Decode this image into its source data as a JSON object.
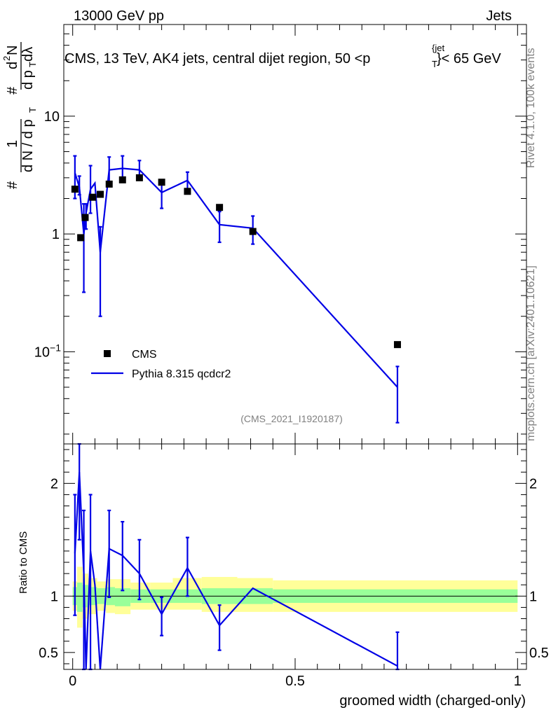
{
  "header": {
    "left": "13000 GeV pp",
    "right": "Jets"
  },
  "side": {
    "rivet": "Rivet 4.1.0,  100k events",
    "mcplots": "mcplots.cern.ch [arXiv:2401.10621]"
  },
  "colors": {
    "data": "#000000",
    "mc": "#0000e6",
    "band_inner": "#99ff99",
    "band_outer": "#ffff99"
  },
  "chart_data": [
    {
      "type": "scatter",
      "title": "CMS, 13 TeV, AK4 jets, central dijet region, 50 <p_T^{jet}< 65 GeV",
      "title_parts": {
        "main": "CMS, 13 TeV, AK4 jets, central dijet region, 50 <p",
        "sup": "{jet",
        "sub": "T",
        "tail": "}< 65 GeV"
      },
      "analysis_tag": "(CMS_2021_I1920187)",
      "ylabel_parts": {
        "hash": "#",
        "one": "1",
        "den": "d N / d p",
        "den_sub": "T",
        "hash2": "#",
        "num2": "d",
        "num2_sup": "2",
        "num2_rest": "N",
        "den2": "d p",
        "den2_sub": "T",
        "den2_rest": " dλ"
      },
      "yscale": "log",
      "ylim": [
        0.0165,
        60
      ],
      "xlim": [
        -0.02,
        1.02
      ],
      "yticks": [
        {
          "value": 0.1,
          "base": "10",
          "exp": "−1"
        },
        {
          "value": 1,
          "label": "1"
        },
        {
          "value": 10,
          "label": "10"
        }
      ],
      "legend": {
        "position": "lower-left",
        "entries": [
          "CMS",
          "Pythia 8.315 qcdcr2"
        ]
      },
      "series": [
        {
          "name": "CMS",
          "marker": "square",
          "x": [
            0.005,
            0.018,
            0.028,
            0.045,
            0.062,
            0.082,
            0.112,
            0.15,
            0.2,
            0.258,
            0.33,
            0.405,
            0.73
          ],
          "y": [
            2.4,
            0.93,
            1.38,
            2.05,
            2.17,
            2.65,
            2.88,
            3.0,
            2.75,
            2.3,
            1.68,
            1.05,
            0.115
          ]
        },
        {
          "name": "Pythia 8.315 qcdcr2",
          "line": true,
          "x": [
            0.005,
            0.015,
            0.025,
            0.03,
            0.04,
            0.05,
            0.062,
            0.082,
            0.112,
            0.15,
            0.2,
            0.258,
            0.33,
            0.405,
            0.73
          ],
          "y": [
            3.3,
            2.5,
            1.0,
            1.5,
            2.4,
            2.7,
            0.7,
            3.5,
            3.6,
            3.5,
            2.25,
            2.85,
            1.2,
            1.12,
            0.05
          ],
          "err_lo": [
            2.0,
            2.15,
            0.32,
            1.1,
            1.5,
            null,
            0.2,
            2.6,
            3.0,
            2.9,
            1.65,
            2.25,
            0.85,
            0.82,
            0.025
          ],
          "err_hi": [
            4.6,
            3.1,
            1.8,
            1.8,
            3.8,
            null,
            1.15,
            4.5,
            4.6,
            4.2,
            2.8,
            3.35,
            1.55,
            1.42,
            0.075
          ]
        }
      ]
    },
    {
      "type": "line",
      "ylabel": "Ratio to CMS",
      "xlabel": "groomed width (charged-only)",
      "ylim": [
        0.35,
        2.35
      ],
      "xlim": [
        -0.02,
        1.02
      ],
      "xticks": [
        {
          "value": 0,
          "label": "0"
        },
        {
          "value": 0.5,
          "label": "0.5"
        },
        {
          "value": 1,
          "label": "1"
        }
      ],
      "yticks": [
        {
          "value": 0.5,
          "label": "0.5"
        },
        {
          "value": 1,
          "label": "1"
        },
        {
          "value": 2,
          "label": "2"
        }
      ],
      "reference": 1,
      "bands": [
        {
          "x0": 0.0,
          "x1": 0.01,
          "inner": [
            0.92,
            1.08
          ],
          "outer": [
            0.87,
            1.13
          ]
        },
        {
          "x0": 0.01,
          "x1": 0.022,
          "inner": [
            0.86,
            1.12
          ],
          "outer": [
            0.72,
            1.26
          ]
        },
        {
          "x0": 0.022,
          "x1": 0.035,
          "inner": [
            0.9,
            1.1
          ],
          "outer": [
            0.8,
            1.2
          ]
        },
        {
          "x0": 0.035,
          "x1": 0.055,
          "inner": [
            0.92,
            1.08
          ],
          "outer": [
            0.84,
            1.16
          ]
        },
        {
          "x0": 0.055,
          "x1": 0.075,
          "inner": [
            0.93,
            1.07
          ],
          "outer": [
            0.87,
            1.13
          ]
        },
        {
          "x0": 0.075,
          "x1": 0.095,
          "inner": [
            0.92,
            1.08
          ],
          "outer": [
            0.85,
            1.15
          ]
        },
        {
          "x0": 0.095,
          "x1": 0.13,
          "inner": [
            0.91,
            1.07
          ],
          "outer": [
            0.84,
            1.15
          ]
        },
        {
          "x0": 0.13,
          "x1": 0.175,
          "inner": [
            0.94,
            1.06
          ],
          "outer": [
            0.88,
            1.12
          ]
        },
        {
          "x0": 0.175,
          "x1": 0.225,
          "inner": [
            0.94,
            1.06
          ],
          "outer": [
            0.88,
            1.12
          ]
        },
        {
          "x0": 0.225,
          "x1": 0.29,
          "inner": [
            0.94,
            1.06
          ],
          "outer": [
            0.88,
            1.16
          ]
        },
        {
          "x0": 0.29,
          "x1": 0.37,
          "inner": [
            0.93,
            1.07
          ],
          "outer": [
            0.86,
            1.17
          ]
        },
        {
          "x0": 0.37,
          "x1": 0.45,
          "inner": [
            0.93,
            1.07
          ],
          "outer": [
            0.86,
            1.16
          ]
        },
        {
          "x0": 0.45,
          "x1": 1.0,
          "inner": [
            0.94,
            1.06
          ],
          "outer": [
            0.86,
            1.14
          ]
        }
      ],
      "series": [
        {
          "name": "Pythia 8.315 qcdcr2 / CMS",
          "x": [
            0.005,
            0.015,
            0.025,
            0.03,
            0.04,
            0.05,
            0.062,
            0.082,
            0.112,
            0.15,
            0.2,
            0.258,
            0.33,
            0.405,
            0.73
          ],
          "y": [
            1.38,
            2.1,
            1.2,
            0.1,
            1.4,
            1.1,
            0.3,
            1.42,
            1.36,
            1.2,
            0.84,
            1.25,
            0.74,
            1.07,
            0.38
          ],
          "err_lo": [
            0.83,
            1.5,
            0.3,
            null,
            0.3,
            null,
            0.3,
            0.99,
            1.05,
            0.97,
            0.65,
            1.0,
            0.52,
            null,
            0.2
          ],
          "err_hi": [
            1.9,
            2.35,
            1.76,
            null,
            1.9,
            null,
            0.3,
            1.76,
            1.66,
            1.5,
            0.99,
            1.52,
            0.92,
            null,
            0.68
          ]
        }
      ]
    }
  ]
}
